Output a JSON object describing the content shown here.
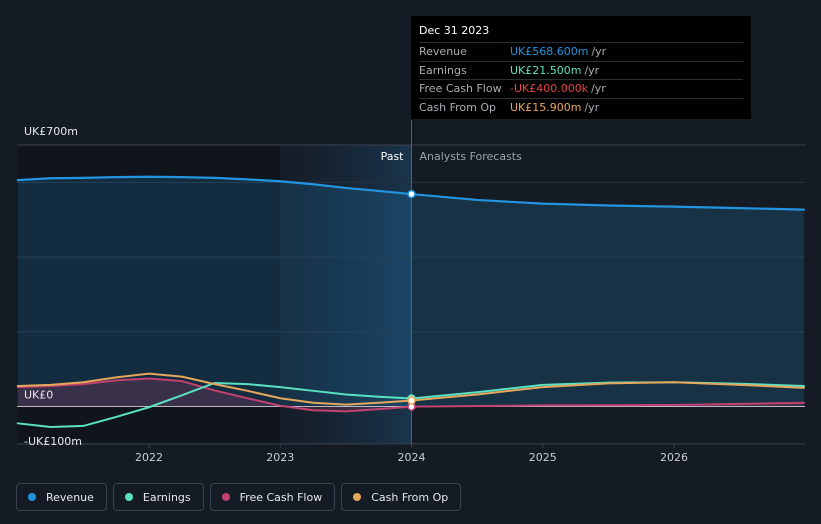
{
  "chart_data": {
    "type": "line",
    "ylim": [
      -100,
      700
    ],
    "y_ticks": [
      {
        "value": 700,
        "label": "UK£700m"
      },
      {
        "value": 0,
        "label": "UK£0"
      },
      {
        "value": -100,
        "label": "-UK£100m"
      }
    ],
    "x_ticks": [
      {
        "value": 2022,
        "label": "2022"
      },
      {
        "value": 2023,
        "label": "2023"
      },
      {
        "value": 2024,
        "label": "2024"
      },
      {
        "value": 2025,
        "label": "2025"
      },
      {
        "value": 2026,
        "label": "2026"
      }
    ],
    "past_label": "Past",
    "forecast_label": "Analysts Forecasts",
    "past_end": 2024.0,
    "series": [
      {
        "key": "revenue",
        "name": "Revenue",
        "color": "#2394df",
        "area": true,
        "points": [
          [
            2021.0,
            606
          ],
          [
            2021.25,
            611
          ],
          [
            2021.5,
            612
          ],
          [
            2021.75,
            614
          ],
          [
            2022.0,
            615
          ],
          [
            2022.25,
            614
          ],
          [
            2022.5,
            612
          ],
          [
            2022.75,
            608
          ],
          [
            2023.0,
            603
          ],
          [
            2023.25,
            595
          ],
          [
            2023.5,
            585
          ],
          [
            2023.75,
            577
          ],
          [
            2024.0,
            568.6
          ],
          [
            2024.5,
            553
          ],
          [
            2025.0,
            543
          ],
          [
            2025.5,
            538
          ],
          [
            2026.0,
            535
          ],
          [
            2026.5,
            531
          ],
          [
            2026.99,
            527
          ]
        ]
      },
      {
        "key": "earnings",
        "name": "Earnings",
        "color": "#58e2c2",
        "area": false,
        "points": [
          [
            2021.0,
            -45
          ],
          [
            2021.25,
            -55
          ],
          [
            2021.5,
            -52
          ],
          [
            2021.75,
            -28
          ],
          [
            2022.0,
            -2
          ],
          [
            2022.25,
            30
          ],
          [
            2022.5,
            63
          ],
          [
            2022.75,
            60
          ],
          [
            2023.0,
            52
          ],
          [
            2023.25,
            42
          ],
          [
            2023.5,
            32
          ],
          [
            2023.75,
            26
          ],
          [
            2024.0,
            21.5
          ],
          [
            2024.5,
            38
          ],
          [
            2025.0,
            58
          ],
          [
            2025.5,
            64
          ],
          [
            2026.0,
            65
          ],
          [
            2026.5,
            61
          ],
          [
            2026.99,
            55
          ]
        ]
      },
      {
        "key": "fcf",
        "name": "Free Cash Flow",
        "color": "#c2416f",
        "area": true,
        "points": [
          [
            2021.0,
            52
          ],
          [
            2021.25,
            55
          ],
          [
            2021.5,
            60
          ],
          [
            2021.75,
            70
          ],
          [
            2022.0,
            75
          ],
          [
            2022.25,
            68
          ],
          [
            2022.5,
            43
          ],
          [
            2022.75,
            22
          ],
          [
            2023.0,
            2
          ],
          [
            2023.25,
            -10
          ],
          [
            2023.5,
            -13
          ],
          [
            2023.75,
            -7
          ],
          [
            2024.0,
            -0.4
          ],
          [
            2025.0,
            3
          ],
          [
            2026.0,
            4
          ],
          [
            2026.99,
            10
          ]
        ]
      },
      {
        "key": "cfo",
        "name": "Cash From Op",
        "color": "#e5a75b",
        "area": false,
        "points": [
          [
            2021.0,
            55
          ],
          [
            2021.25,
            58
          ],
          [
            2021.5,
            65
          ],
          [
            2021.75,
            78
          ],
          [
            2022.0,
            88
          ],
          [
            2022.25,
            80
          ],
          [
            2022.5,
            60
          ],
          [
            2022.75,
            42
          ],
          [
            2023.0,
            22
          ],
          [
            2023.25,
            10
          ],
          [
            2023.5,
            5
          ],
          [
            2023.75,
            10
          ],
          [
            2024.0,
            15.9
          ],
          [
            2024.5,
            32
          ],
          [
            2025.0,
            52
          ],
          [
            2025.5,
            62
          ],
          [
            2026.0,
            65
          ],
          [
            2026.5,
            58
          ],
          [
            2026.99,
            50
          ]
        ]
      }
    ]
  },
  "tooltip": {
    "date": "Dec 31 2023",
    "rows": [
      {
        "label": "Revenue",
        "value": "UK£568.600m",
        "unit": "/yr",
        "color": "#2394df"
      },
      {
        "label": "Earnings",
        "value": "UK£21.500m",
        "unit": "/yr",
        "color": "#58e2c2"
      },
      {
        "label": "Free Cash Flow",
        "value": "-UK£400.000k",
        "unit": "/yr",
        "color": "#e64545"
      },
      {
        "label": "Cash From Op",
        "value": "UK£15.900m",
        "unit": "/yr",
        "color": "#e5a75b"
      }
    ]
  },
  "legend": [
    {
      "label": "Revenue",
      "color": "#2394df"
    },
    {
      "label": "Earnings",
      "color": "#58e2c2"
    },
    {
      "label": "Free Cash Flow",
      "color": "#c2416f"
    },
    {
      "label": "Cash From Op",
      "color": "#e5a75b"
    }
  ]
}
